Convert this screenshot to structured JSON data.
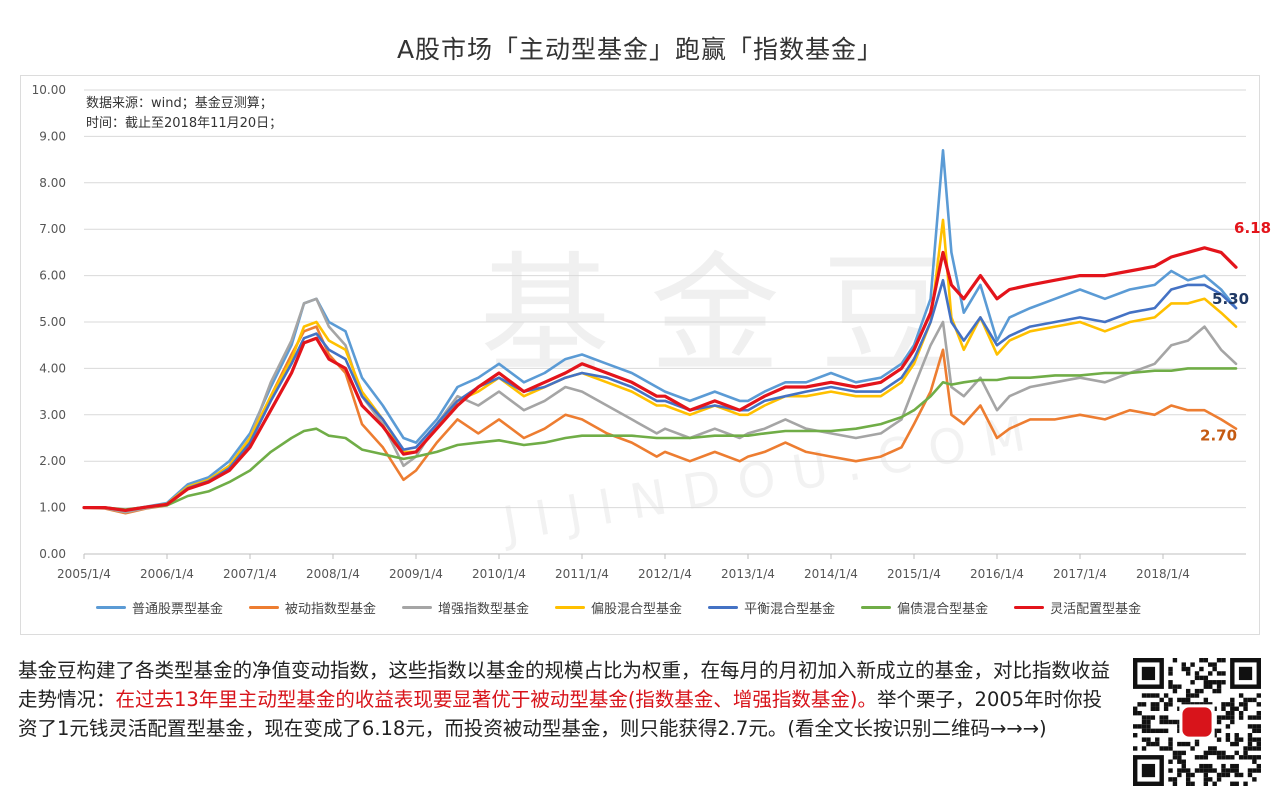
{
  "chart_data": {
    "type": "line",
    "title": "A股市场「主动型基金」跑赢「指数基金」",
    "xlabel": "",
    "ylabel": "",
    "ylim": [
      0,
      10
    ],
    "yticks": [
      "0.00",
      "1.00",
      "2.00",
      "3.00",
      "4.00",
      "5.00",
      "6.00",
      "7.00",
      "8.00",
      "9.00",
      "10.00"
    ],
    "xticks": [
      "2005/1/4",
      "2006/1/4",
      "2007/1/4",
      "2008/1/4",
      "2009/1/4",
      "2010/1/4",
      "2011/1/4",
      "2012/1/4",
      "2013/1/4",
      "2014/1/4",
      "2015/1/4",
      "2016/1/4",
      "2017/1/4",
      "2018/1/4"
    ],
    "grid": true,
    "legend_position": "bottom",
    "notes": [
      "数据来源：wind；基金豆测算；",
      "时间：截止至2018年11月20日；"
    ],
    "x": [
      2005.0,
      2005.25,
      2005.5,
      2005.75,
      2006.0,
      2006.25,
      2006.5,
      2006.75,
      2007.0,
      2007.25,
      2007.5,
      2007.65,
      2007.8,
      2007.95,
      2008.15,
      2008.35,
      2008.6,
      2008.85,
      2009.0,
      2009.25,
      2009.5,
      2009.75,
      2010.0,
      2010.3,
      2010.55,
      2010.8,
      2011.0,
      2011.3,
      2011.6,
      2011.9,
      2012.0,
      2012.3,
      2012.6,
      2012.9,
      2013.0,
      2013.2,
      2013.45,
      2013.7,
      2014.0,
      2014.3,
      2014.6,
      2014.85,
      2015.0,
      2015.2,
      2015.35,
      2015.45,
      2015.6,
      2015.8,
      2016.0,
      2016.15,
      2016.4,
      2016.7,
      2017.0,
      2017.3,
      2017.6,
      2017.9,
      2018.1,
      2018.3,
      2018.5,
      2018.7,
      2018.88
    ],
    "series": [
      {
        "name": "普通股票型基金",
        "color": "#5b9bd5",
        "values": [
          1.0,
          1.0,
          0.95,
          1.02,
          1.1,
          1.5,
          1.65,
          2.0,
          2.6,
          3.6,
          4.5,
          5.4,
          5.5,
          5.0,
          4.8,
          3.8,
          3.2,
          2.5,
          2.4,
          2.9,
          3.6,
          3.8,
          4.1,
          3.7,
          3.9,
          4.2,
          4.3,
          4.1,
          3.9,
          3.6,
          3.5,
          3.3,
          3.5,
          3.3,
          3.3,
          3.5,
          3.7,
          3.7,
          3.9,
          3.7,
          3.8,
          4.1,
          4.5,
          5.5,
          8.7,
          6.5,
          5.2,
          5.8,
          4.6,
          5.1,
          5.3,
          5.5,
          5.7,
          5.5,
          5.7,
          5.8,
          6.1,
          5.9,
          6.0,
          5.7,
          5.3
        ]
      },
      {
        "name": "被动指数型基金",
        "color": "#ed7d31",
        "values": [
          1.0,
          0.98,
          0.88,
          0.98,
          1.05,
          1.4,
          1.55,
          1.8,
          2.4,
          3.4,
          4.3,
          4.8,
          4.9,
          4.3,
          3.9,
          2.8,
          2.3,
          1.6,
          1.8,
          2.4,
          2.9,
          2.6,
          2.9,
          2.5,
          2.7,
          3.0,
          2.9,
          2.6,
          2.4,
          2.1,
          2.2,
          2.0,
          2.2,
          2.0,
          2.1,
          2.2,
          2.4,
          2.2,
          2.1,
          2.0,
          2.1,
          2.3,
          2.8,
          3.5,
          4.4,
          3.0,
          2.8,
          3.2,
          2.5,
          2.7,
          2.9,
          2.9,
          3.0,
          2.9,
          3.1,
          3.0,
          3.2,
          3.1,
          3.1,
          2.9,
          2.7
        ]
      },
      {
        "name": "增强指数型基金",
        "color": "#a5a5a5",
        "values": [
          1.0,
          0.99,
          0.9,
          0.99,
          1.06,
          1.45,
          1.6,
          1.9,
          2.5,
          3.7,
          4.6,
          5.4,
          5.5,
          4.9,
          4.5,
          3.4,
          2.8,
          1.9,
          2.1,
          2.8,
          3.4,
          3.2,
          3.5,
          3.1,
          3.3,
          3.6,
          3.5,
          3.2,
          2.9,
          2.6,
          2.7,
          2.5,
          2.7,
          2.5,
          2.6,
          2.7,
          2.9,
          2.7,
          2.6,
          2.5,
          2.6,
          2.9,
          3.6,
          4.5,
          5.0,
          3.6,
          3.4,
          3.8,
          3.1,
          3.4,
          3.6,
          3.7,
          3.8,
          3.7,
          3.9,
          4.1,
          4.5,
          4.6,
          4.9,
          4.4,
          4.1
        ]
      },
      {
        "name": "偏股混合型基金",
        "color": "#ffc000",
        "values": [
          1.0,
          1.0,
          0.94,
          1.01,
          1.08,
          1.45,
          1.6,
          1.9,
          2.5,
          3.4,
          4.2,
          4.9,
          5.0,
          4.6,
          4.4,
          3.5,
          2.9,
          2.2,
          2.2,
          2.7,
          3.3,
          3.5,
          3.8,
          3.4,
          3.6,
          3.8,
          3.9,
          3.7,
          3.5,
          3.2,
          3.2,
          3.0,
          3.2,
          3.0,
          3.0,
          3.2,
          3.4,
          3.4,
          3.5,
          3.4,
          3.4,
          3.7,
          4.1,
          5.0,
          7.2,
          5.1,
          4.4,
          5.1,
          4.3,
          4.6,
          4.8,
          4.9,
          5.0,
          4.8,
          5.0,
          5.1,
          5.4,
          5.4,
          5.5,
          5.2,
          4.9
        ]
      },
      {
        "name": "平衡混合型基金",
        "color": "#4472c4",
        "values": [
          1.0,
          1.0,
          0.94,
          1.01,
          1.07,
          1.42,
          1.57,
          1.85,
          2.4,
          3.3,
          4.1,
          4.65,
          4.75,
          4.4,
          4.2,
          3.4,
          2.9,
          2.25,
          2.3,
          2.8,
          3.3,
          3.6,
          3.8,
          3.5,
          3.6,
          3.8,
          3.9,
          3.8,
          3.6,
          3.3,
          3.3,
          3.1,
          3.2,
          3.1,
          3.1,
          3.3,
          3.4,
          3.5,
          3.6,
          3.5,
          3.5,
          3.8,
          4.2,
          5.0,
          5.9,
          5.0,
          4.6,
          5.1,
          4.5,
          4.7,
          4.9,
          5.0,
          5.1,
          5.0,
          5.2,
          5.3,
          5.7,
          5.8,
          5.8,
          5.6,
          5.3
        ]
      },
      {
        "name": "偏债混合型基金",
        "color": "#70ad47",
        "values": [
          1.0,
          1.0,
          0.96,
          1.01,
          1.05,
          1.25,
          1.35,
          1.55,
          1.8,
          2.2,
          2.5,
          2.65,
          2.7,
          2.55,
          2.5,
          2.25,
          2.15,
          2.05,
          2.1,
          2.2,
          2.35,
          2.4,
          2.45,
          2.35,
          2.4,
          2.5,
          2.55,
          2.55,
          2.55,
          2.5,
          2.5,
          2.5,
          2.55,
          2.55,
          2.55,
          2.6,
          2.65,
          2.65,
          2.65,
          2.7,
          2.8,
          2.95,
          3.1,
          3.4,
          3.7,
          3.65,
          3.7,
          3.75,
          3.75,
          3.8,
          3.8,
          3.85,
          3.85,
          3.9,
          3.9,
          3.95,
          3.95,
          4.0,
          4.0,
          4.0,
          4.0
        ]
      },
      {
        "name": "灵活配置型基金",
        "color": "#e3141b",
        "values": [
          1.0,
          1.0,
          0.94,
          1.01,
          1.07,
          1.4,
          1.55,
          1.8,
          2.3,
          3.1,
          3.9,
          4.55,
          4.65,
          4.2,
          4.0,
          3.2,
          2.75,
          2.15,
          2.2,
          2.7,
          3.2,
          3.6,
          3.9,
          3.5,
          3.7,
          3.9,
          4.1,
          3.9,
          3.7,
          3.4,
          3.4,
          3.1,
          3.3,
          3.1,
          3.2,
          3.4,
          3.6,
          3.6,
          3.7,
          3.6,
          3.7,
          4.0,
          4.4,
          5.2,
          6.5,
          5.8,
          5.5,
          6.0,
          5.5,
          5.7,
          5.8,
          5.9,
          6.0,
          6.0,
          6.1,
          6.2,
          6.4,
          6.5,
          6.6,
          6.5,
          6.18
        ]
      }
    ],
    "annotations": [
      {
        "text": "6.18",
        "color": "#e3141b",
        "x": 2018.88,
        "y": 6.18
      },
      {
        "text": "5.30",
        "color": "#1f3864",
        "x": 2018.88,
        "y": 5.3
      },
      {
        "text": "2.70",
        "color": "#c55a11",
        "x": 2018.88,
        "y": 2.7
      }
    ]
  },
  "watermark": {
    "text": "基金豆",
    "sub": "JIJINDOU.COM"
  },
  "caption": {
    "part1": "基金豆构建了各类型基金的净值变动指数，这些指数以基金的规模占比为权重，在每月的月初加入新成立的基金，对比指数收益走势情况：",
    "highlight": "在过去13年里主动型基金的收益表现要显著优于被动型基金(指数基金、增强指数基金)。",
    "part2": "举个栗子，2005年时你投资了1元钱灵活配置型基金，现在变成了6.18元，而投资被动型基金，则只能获得2.7元。(看全文长按识别二维码→→→)"
  },
  "qr": {
    "icon": "qr-code-icon",
    "accent": "#d8141b"
  }
}
